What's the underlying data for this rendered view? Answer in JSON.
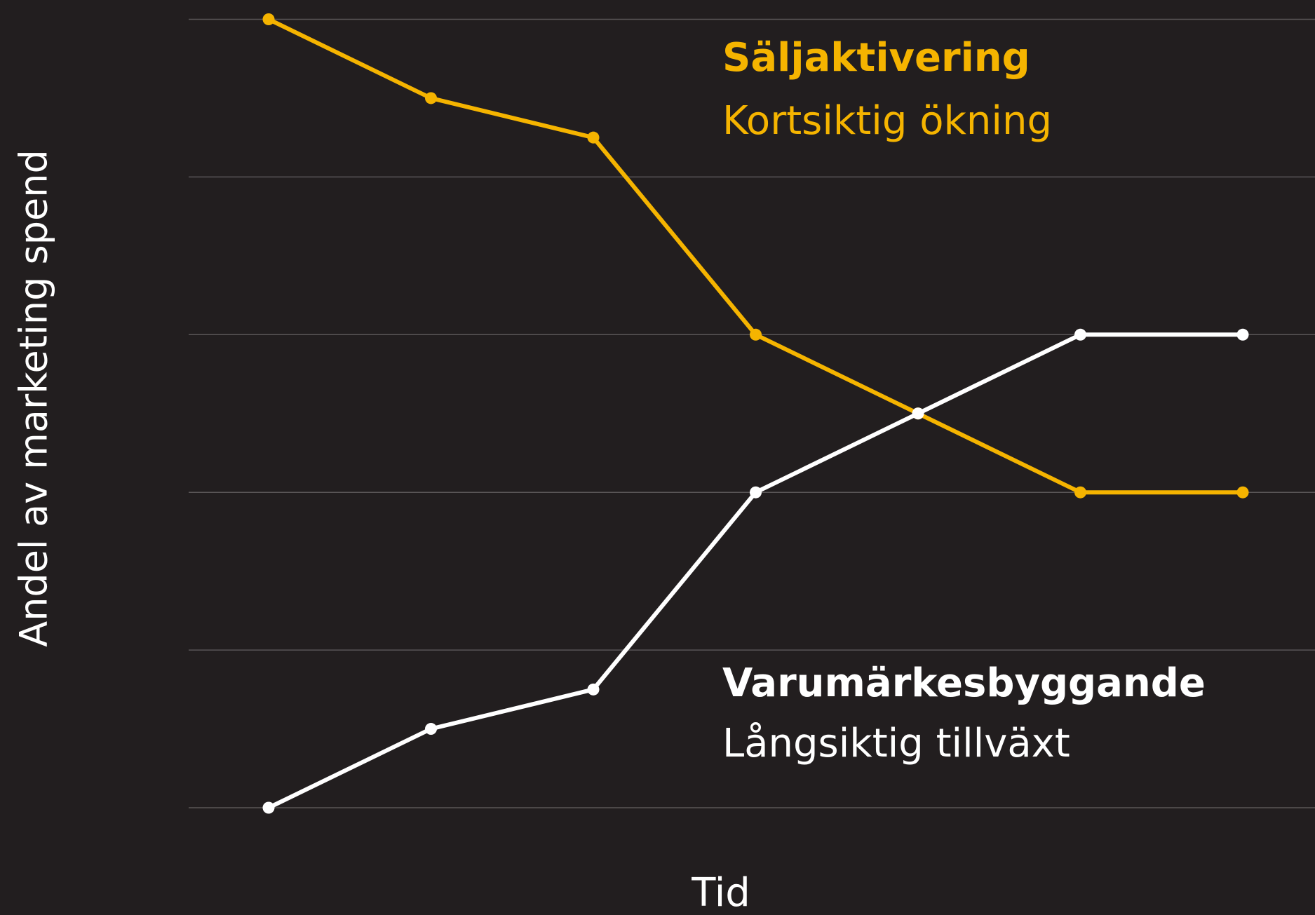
{
  "chart_data": {
    "type": "line",
    "xlabel": "Tid",
    "ylabel": "Andel av marketing spend",
    "categories": [
      null,
      null,
      null,
      null,
      null,
      null,
      null
    ],
    "series": [
      {
        "name": "Säljaktivering",
        "subtitle": "Kortsiktig ökning",
        "color": "#f5b400",
        "values": [
          100,
          90,
          85,
          60,
          50,
          40,
          40
        ]
      },
      {
        "name": "Varumärkesbyggande",
        "subtitle": "Långsiktig tillväxt",
        "color": "#ffffff",
        "values": [
          0,
          10,
          15,
          40,
          50,
          60,
          60
        ]
      }
    ],
    "ylim": [
      0,
      100
    ],
    "yticks": [
      0,
      20,
      40,
      60,
      80,
      100
    ],
    "grid": true,
    "grid_color": "#5a5657",
    "background": "#221e1f"
  }
}
